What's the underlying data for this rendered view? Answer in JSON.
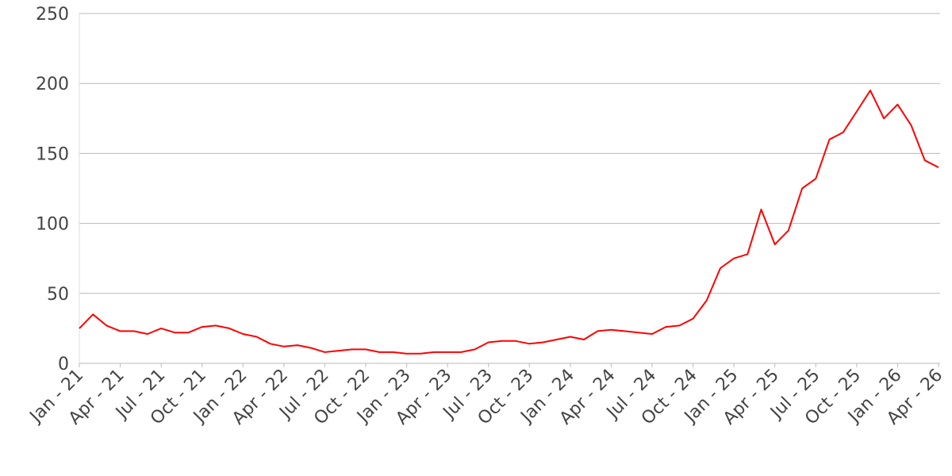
{
  "chart_data": {
    "type": "line",
    "x": [
      "Jan - 21",
      "Feb - 21",
      "Mar - 21",
      "Apr - 21",
      "May - 21",
      "Jun - 21",
      "Jul - 21",
      "Aug - 21",
      "Sep - 21",
      "Oct - 21",
      "Nov - 21",
      "Dec - 21",
      "Jan - 22",
      "Feb - 22",
      "Mar - 22",
      "Apr - 22",
      "May - 22",
      "Jun - 22",
      "Jul - 22",
      "Aug - 22",
      "Sep - 22",
      "Oct - 22",
      "Nov - 22",
      "Dec - 22",
      "Jan - 23",
      "Feb - 23",
      "Mar - 23",
      "Apr - 23",
      "May - 23",
      "Jun - 23",
      "Jul - 23",
      "Aug - 23",
      "Sep - 23",
      "Oct - 23",
      "Nov - 23",
      "Dec - 23",
      "Jan - 24",
      "Feb - 24",
      "Mar - 24",
      "Apr - 24",
      "May - 24",
      "Jun - 24",
      "Jul - 24",
      "Aug - 24",
      "Sep - 24",
      "Oct - 24",
      "Nov - 24",
      "Dec - 24",
      "Jan - 25",
      "Feb - 25",
      "Mar - 25",
      "Apr - 25",
      "May - 25",
      "Jun - 25",
      "Jul - 25",
      "Aug - 25",
      "Sep - 25",
      "Oct - 25",
      "Nov - 25",
      "Dec - 25",
      "Jan - 26",
      "Feb - 26",
      "Mar - 26",
      "Apr - 26"
    ],
    "values": [
      25,
      35,
      27,
      23,
      23,
      21,
      25,
      22,
      22,
      26,
      27,
      25,
      21,
      19,
      14,
      12,
      13,
      11,
      8,
      9,
      10,
      10,
      8,
      8,
      7,
      7,
      8,
      8,
      8,
      10,
      15,
      16,
      16,
      14,
      15,
      17,
      19,
      17,
      23,
      24,
      23,
      22,
      21,
      26,
      27,
      32,
      45,
      68,
      75,
      78,
      110,
      85,
      95,
      125,
      132,
      160,
      165,
      180,
      195,
      175,
      185,
      170,
      145,
      140
    ],
    "color": "#ff0000",
    "ylim": [
      0,
      250
    ],
    "yticks": [
      0,
      50,
      100,
      150,
      200,
      250
    ],
    "grid": true,
    "xticks": [
      "Jan - 21",
      "Apr - 21",
      "Jul - 21",
      "Oct - 21",
      "Jan - 22",
      "Apr - 22",
      "Jul - 22",
      "Oct - 22",
      "Jan - 23",
      "Apr - 23",
      "Jul - 23",
      "Oct - 23",
      "Jan - 24",
      "Apr - 24",
      "Jul - 24",
      "Oct - 24",
      "Jan - 25",
      "Apr - 25",
      "Jul - 25",
      "Oct - 25",
      "Jan - 26",
      "Apr - 26"
    ]
  }
}
